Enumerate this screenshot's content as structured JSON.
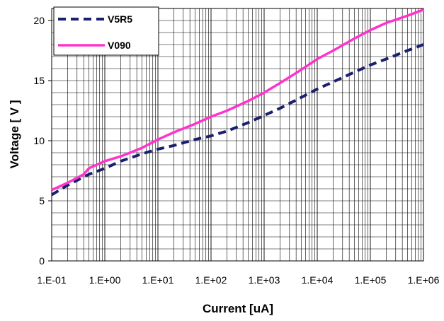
{
  "chart_data": {
    "type": "line",
    "title": "",
    "xlabel": "Current [uA]",
    "ylabel": "Voltage [ V ]",
    "x_scale": "log",
    "xlim": [
      0.1,
      1000000
    ],
    "ylim": [
      0,
      21
    ],
    "x_ticks": [
      0.1,
      1,
      10,
      100,
      1000,
      10000,
      100000,
      1000000
    ],
    "x_tick_labels": [
      "1.E-01",
      "1.E+00",
      "1.E+01",
      "1.E+02",
      "1.E+03",
      "1.E+04",
      "1.E+05",
      "1.E+06"
    ],
    "y_ticks": [
      0,
      5,
      10,
      15,
      20
    ],
    "y_tick_labels": [
      "0",
      "5",
      "10",
      "15",
      "20"
    ],
    "grid": true,
    "legend_position": "top-left",
    "series": [
      {
        "name": "V5R5",
        "style": "dashed",
        "color": "#1a1f6e",
        "x": [
          0.1,
          0.2,
          0.5,
          1,
          2,
          5,
          10,
          20,
          50,
          100,
          200,
          500,
          1000,
          2000,
          5000,
          10000,
          20000,
          50000,
          100000,
          200000,
          500000,
          1000000
        ],
        "y": [
          5.5,
          6.3,
          7.2,
          7.7,
          8.3,
          8.9,
          9.3,
          9.6,
          10.1,
          10.4,
          10.8,
          11.5,
          12.1,
          12.7,
          13.6,
          14.3,
          14.9,
          15.7,
          16.3,
          16.8,
          17.5,
          18.0
        ]
      },
      {
        "name": "V090",
        "style": "solid",
        "color": "#ff33cc",
        "x": [
          0.1,
          0.2,
          0.4,
          0.5,
          1,
          2,
          5,
          10,
          20,
          50,
          100,
          200,
          500,
          1000,
          2000,
          5000,
          10000,
          20000,
          50000,
          100000,
          200000,
          500000,
          1000000
        ],
        "y": [
          5.9,
          6.5,
          7.2,
          7.7,
          8.3,
          8.7,
          9.4,
          10.1,
          10.7,
          11.4,
          12.0,
          12.5,
          13.3,
          14.0,
          14.8,
          15.9,
          16.8,
          17.5,
          18.5,
          19.2,
          19.8,
          20.4,
          20.9
        ]
      }
    ]
  }
}
